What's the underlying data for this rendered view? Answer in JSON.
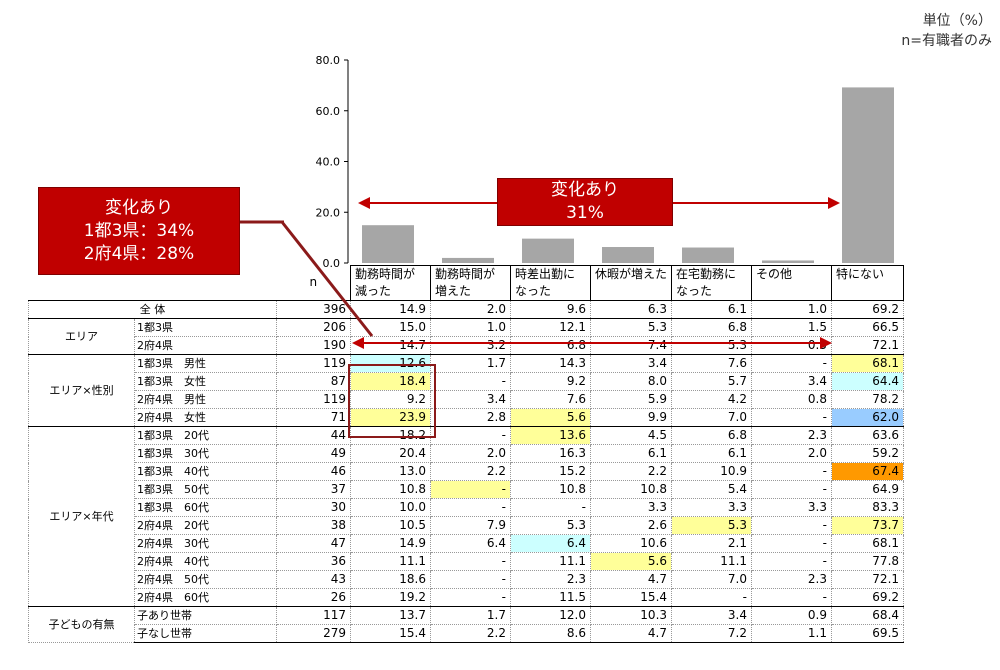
{
  "unit_line1": "単位（%）",
  "unit_line2": "n=有職者のみ",
  "chart_data": {
    "type": "bar",
    "categories": [
      "勤務時間が減った",
      "勤務時間が増えた",
      "時差出勤になった",
      "休暇が増えた",
      "在宅勤務になった",
      "その他",
      "特にない"
    ],
    "values": [
      14.9,
      2.0,
      9.6,
      6.3,
      6.1,
      1.0,
      69.2
    ],
    "ylim": [
      0,
      80
    ],
    "yticks": [
      "80.0",
      "60.0",
      "40.0",
      "20.0",
      "0.0"
    ],
    "bar_color": "#a6a6a6"
  },
  "callout_center": {
    "line1": "変化あり",
    "line2": "31%"
  },
  "callout_left": {
    "line1": "変化あり",
    "line2": "1都3県：34%",
    "line3": "2府4県：28%"
  },
  "table": {
    "n_header": "n",
    "headers": [
      {
        "l1": "勤務時間が",
        "l2": "減った"
      },
      {
        "l1": "勤務時間が",
        "l2": "増えた"
      },
      {
        "l1": "時差出勤に",
        "l2": "なった"
      },
      {
        "l1": "休暇が増えた",
        "l2": ""
      },
      {
        "l1": "在宅勤務に",
        "l2": "なった"
      },
      {
        "l1": "その他",
        "l2": ""
      },
      {
        "l1": "特にない",
        "l2": ""
      }
    ],
    "total": {
      "label": "全 体",
      "n": "396",
      "v": [
        "14.9",
        "2.0",
        "9.6",
        "6.3",
        "6.1",
        "1.0",
        "69.2"
      ]
    },
    "groups": [
      {
        "label": "エリア",
        "rows": [
          {
            "label": "1都3県",
            "n": "206",
            "v": [
              "15.0",
              "1.0",
              "12.1",
              "5.3",
              "6.8",
              "1.5",
              "66.5"
            ]
          },
          {
            "label": "2府4県",
            "n": "190",
            "v": [
              "14.7",
              "3.2",
              "6.8",
              "7.4",
              "5.3",
              "0.5",
              "72.1"
            ]
          }
        ]
      },
      {
        "label": "エリア×性別",
        "rows": [
          {
            "label": "1都3県　男性",
            "n": "119",
            "v": [
              "12.6",
              "1.7",
              "14.3",
              "3.4",
              "7.6",
              "-",
              "68.1"
            ]
          },
          {
            "label": "1都3県　女性",
            "n": "87",
            "v": [
              "18.4",
              "-",
              "9.2",
              "8.0",
              "5.7",
              "3.4",
              "64.4"
            ]
          },
          {
            "label": "2府4県　男性",
            "n": "119",
            "v": [
              "9.2",
              "3.4",
              "7.6",
              "5.9",
              "4.2",
              "0.8",
              "78.2"
            ]
          },
          {
            "label": "2府4県　女性",
            "n": "71",
            "v": [
              "23.9",
              "2.8",
              "5.6",
              "9.9",
              "7.0",
              "-",
              "62.0"
            ]
          }
        ]
      },
      {
        "label": "エリア×年代",
        "rows": [
          {
            "label": "1都3県　20代",
            "n": "44",
            "v": [
              "18.2",
              "-",
              "13.6",
              "4.5",
              "6.8",
              "2.3",
              "63.6"
            ]
          },
          {
            "label": "1都3県　30代",
            "n": "49",
            "v": [
              "20.4",
              "2.0",
              "16.3",
              "6.1",
              "6.1",
              "2.0",
              "59.2"
            ]
          },
          {
            "label": "1都3県　40代",
            "n": "46",
            "v": [
              "13.0",
              "2.2",
              "15.2",
              "2.2",
              "10.9",
              "-",
              "67.4"
            ]
          },
          {
            "label": "1都3県　50代",
            "n": "37",
            "v": [
              "10.8",
              "-",
              "10.8",
              "10.8",
              "5.4",
              "-",
              "64.9"
            ]
          },
          {
            "label": "1都3県　60代",
            "n": "30",
            "v": [
              "10.0",
              "-",
              "-",
              "3.3",
              "3.3",
              "3.3",
              "83.3"
            ]
          },
          {
            "label": "2府4県　20代",
            "n": "38",
            "v": [
              "10.5",
              "7.9",
              "5.3",
              "2.6",
              "5.3",
              "-",
              "73.7"
            ]
          },
          {
            "label": "2府4県　30代",
            "n": "47",
            "v": [
              "14.9",
              "6.4",
              "6.4",
              "10.6",
              "2.1",
              "-",
              "68.1"
            ]
          },
          {
            "label": "2府4県　40代",
            "n": "36",
            "v": [
              "11.1",
              "-",
              "11.1",
              "5.6",
              "11.1",
              "-",
              "77.8"
            ]
          },
          {
            "label": "2府4県　50代",
            "n": "43",
            "v": [
              "18.6",
              "-",
              "2.3",
              "4.7",
              "7.0",
              "2.3",
              "72.1"
            ]
          },
          {
            "label": "2府4県　60代",
            "n": "26",
            "v": [
              "19.2",
              "-",
              "11.5",
              "15.4",
              "-",
              "-",
              "69.2"
            ]
          }
        ]
      },
      {
        "label": "子どもの有無",
        "rows": [
          {
            "label": "子あり世帯",
            "n": "117",
            "v": [
              "13.7",
              "1.7",
              "12.0",
              "10.3",
              "3.4",
              "0.9",
              "68.4"
            ]
          },
          {
            "label": "子なし世帯",
            "n": "279",
            "v": [
              "15.4",
              "2.2",
              "8.6",
              "4.7",
              "7.2",
              "1.1",
              "69.5"
            ]
          }
        ]
      }
    ],
    "highlights": {
      "yellow": "#ffff99",
      "cyan": "#ccffff",
      "blue": "#99ccff",
      "orange": "#ff9900"
    }
  }
}
